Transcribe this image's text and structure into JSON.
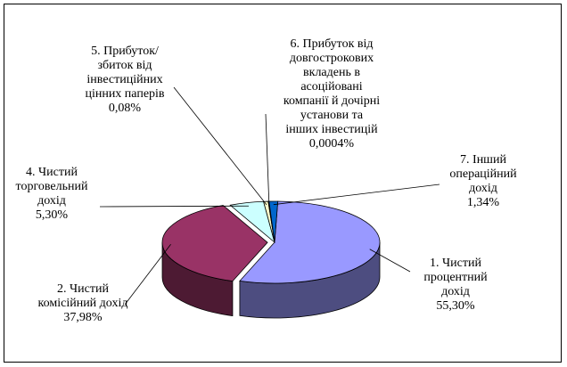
{
  "chart_data": {
    "type": "pie",
    "style": "3d-exploded",
    "slices": [
      {
        "name_lines": [
          "1. Чистий",
          "процентний",
          "дохід"
        ],
        "value_label": "55,30%",
        "value": 55.3,
        "color": "#9999ff",
        "side": "#4d4d80"
      },
      {
        "name_lines": [
          "2. Чистий",
          "комісійний дохід"
        ],
        "value_label": "37,98%",
        "value": 37.98,
        "color": "#993366",
        "side": "#4d1a33"
      },
      {
        "name_lines": [
          "4. Чистий",
          "торговельний",
          "дохід"
        ],
        "value_label": "5,30%",
        "value": 5.3,
        "color": "#ccffff",
        "side": "#668080"
      },
      {
        "name_lines": [
          "5. Прибуток/",
          "збиток від",
          "інвестиційних",
          "цінних паперів"
        ],
        "value_label": "0,08%",
        "value": 0.08,
        "color": "#ffffcc",
        "side": "#808066"
      },
      {
        "name_lines": [
          "6. Прибуток від",
          "довгострокових",
          "вкладень в",
          "асоційовані",
          "компанії й дочірні",
          "установи та",
          "інших інвестицій"
        ],
        "value_label": "0,0004%",
        "value": 0.0004,
        "color": "#0066cc",
        "side": "#003366"
      },
      {
        "name_lines": [
          "7. Інший",
          "операційний",
          "дохід"
        ],
        "value_label": "1,34%",
        "value": 1.34,
        "color": "#0066cc",
        "side": "#003366"
      }
    ]
  }
}
